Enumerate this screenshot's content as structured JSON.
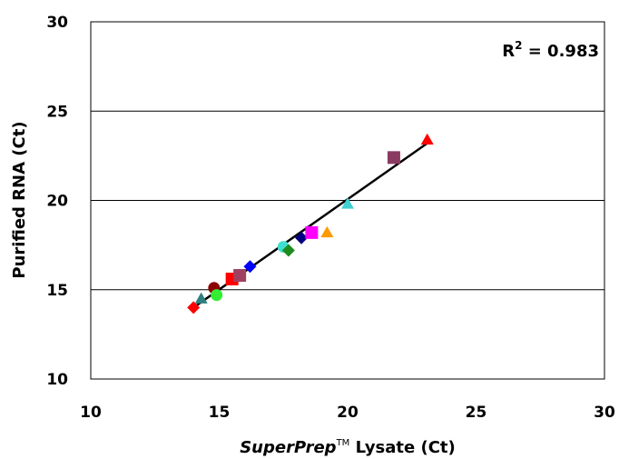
{
  "chart_data": {
    "type": "scatter",
    "title": "",
    "xlabel": {
      "italic_part": "SuperPrep",
      "superscript": "TM",
      "rest": " Lysate (Ct)"
    },
    "ylabel": "Purified RNA (Ct)",
    "xlim": [
      10,
      30
    ],
    "ylim": [
      10,
      30
    ],
    "xticks": [
      "10",
      "15",
      "20",
      "25",
      "30"
    ],
    "yticks": [
      "10",
      "15",
      "20",
      "25",
      "30"
    ],
    "grid": {
      "horizontal": true,
      "vertical": false
    },
    "annotation": {
      "prefix": "R",
      "sup": "2",
      "suffix": " = 0.983"
    },
    "trendline": {
      "x": [
        14.0,
        23.1
      ],
      "y": [
        14.0,
        23.2
      ]
    },
    "points": [
      {
        "x": 14.0,
        "y": 14.0,
        "shape": "diamond",
        "color": "#ff0000"
      },
      {
        "x": 14.3,
        "y": 14.5,
        "shape": "triangle",
        "color": "#2f7f7f"
      },
      {
        "x": 14.8,
        "y": 15.1,
        "shape": "circle",
        "color": "#8b0000"
      },
      {
        "x": 14.9,
        "y": 14.7,
        "shape": "circle",
        "color": "#33ee33"
      },
      {
        "x": 15.5,
        "y": 15.6,
        "shape": "square",
        "color": "#ff0000"
      },
      {
        "x": 15.8,
        "y": 15.8,
        "shape": "square",
        "color": "#a0405f"
      },
      {
        "x": 16.2,
        "y": 16.3,
        "shape": "diamond",
        "color": "#0000ff"
      },
      {
        "x": 17.5,
        "y": 17.4,
        "shape": "circle",
        "color": "#40e0d0"
      },
      {
        "x": 17.7,
        "y": 17.2,
        "shape": "diamond",
        "color": "#1e8b1e"
      },
      {
        "x": 18.2,
        "y": 17.9,
        "shape": "diamond",
        "color": "#000080"
      },
      {
        "x": 18.6,
        "y": 18.2,
        "shape": "square",
        "color": "#ff00ff"
      },
      {
        "x": 19.2,
        "y": 18.2,
        "shape": "triangle",
        "color": "#ff9900"
      },
      {
        "x": 20.0,
        "y": 19.8,
        "shape": "triangle",
        "color": "#40d0d0"
      },
      {
        "x": 21.8,
        "y": 22.4,
        "shape": "square",
        "color": "#8b3a62"
      },
      {
        "x": 23.1,
        "y": 23.4,
        "shape": "triangle",
        "color": "#ff0000"
      }
    ]
  }
}
